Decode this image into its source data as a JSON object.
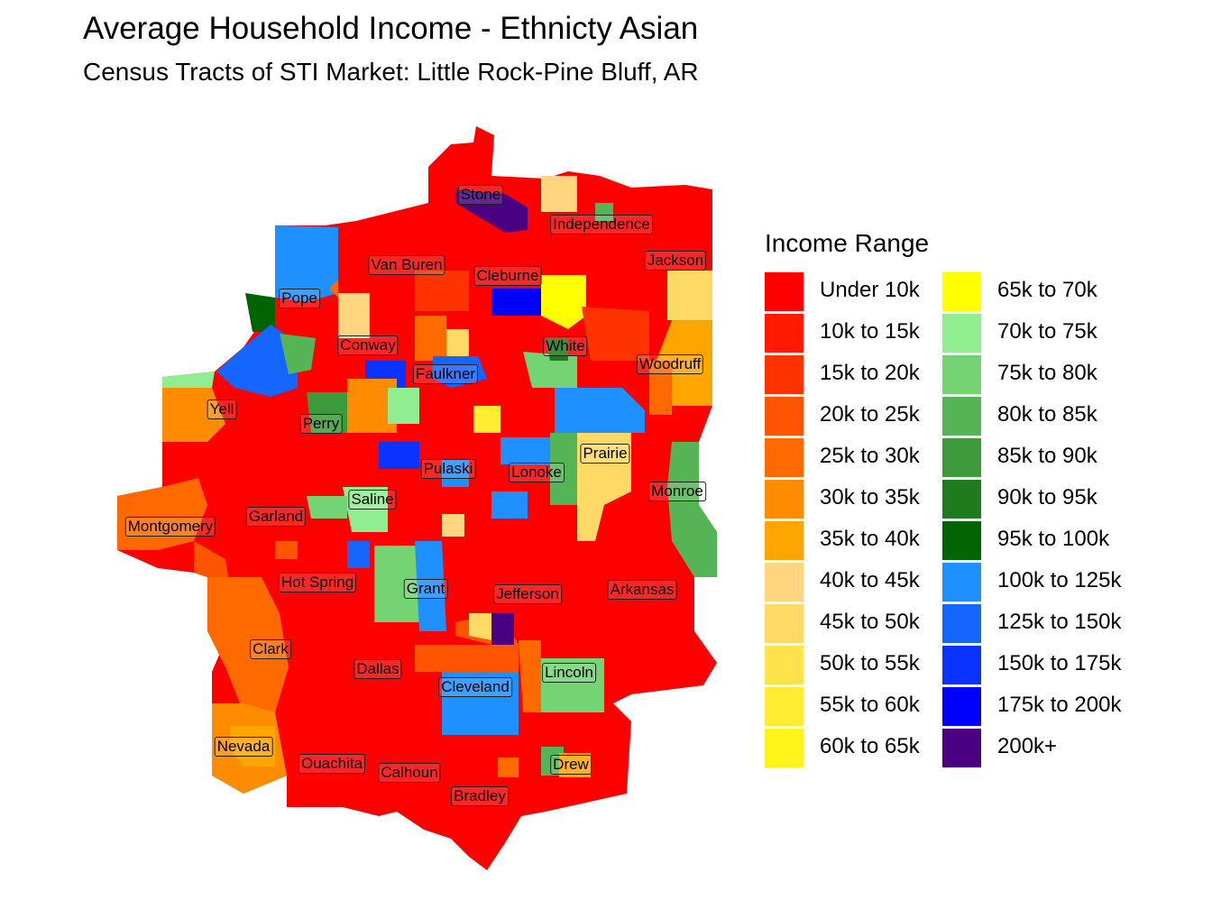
{
  "title": "Average Household Income - Ethnicty Asian",
  "subtitle": "Census Tracts of STI Market: Little Rock-Pine Bluff, AR",
  "legend": {
    "title": "Income Range",
    "items": [
      {
        "label": "Under 10k",
        "color": "#FF0000"
      },
      {
        "label": "10k to 15k",
        "color": "#FF1A00"
      },
      {
        "label": "15k to 20k",
        "color": "#FF3300"
      },
      {
        "label": "20k to 25k",
        "color": "#FF5500"
      },
      {
        "label": "25k to 30k",
        "color": "#FF6A00"
      },
      {
        "label": "30k to 35k",
        "color": "#FF8C00"
      },
      {
        "label": "35k to 40k",
        "color": "#FFA500"
      },
      {
        "label": "40k to 45k",
        "color": "#FFD580"
      },
      {
        "label": "45k to 50k",
        "color": "#FFD966"
      },
      {
        "label": "50k to 55k",
        "color": "#FFE34D"
      },
      {
        "label": "55k to 60k",
        "color": "#FFEC33"
      },
      {
        "label": "60k to 65k",
        "color": "#FFF41A"
      },
      {
        "label": "65k to 70k",
        "color": "#FFFF00"
      },
      {
        "label": "70k to 75k",
        "color": "#90EE90"
      },
      {
        "label": "75k to 80k",
        "color": "#74D474"
      },
      {
        "label": "80k to 85k",
        "color": "#55B455"
      },
      {
        "label": "85k to 90k",
        "color": "#3C9A3C"
      },
      {
        "label": "90k to 95k",
        "color": "#1E7B1E"
      },
      {
        "label": "95k to 100k",
        "color": "#006400"
      },
      {
        "label": "100k to 125k",
        "color": "#1E90FF"
      },
      {
        "label": "125k to 150k",
        "color": "#1466FF"
      },
      {
        "label": "150k to 175k",
        "color": "#0A33FF"
      },
      {
        "label": "175k to 200k",
        "color": "#0000FF"
      },
      {
        "label": "200k+",
        "color": "#4B0082"
      }
    ]
  },
  "counties": [
    "Stone",
    "Independence",
    "Van Buren",
    "Cleburne",
    "Jackson",
    "Pope",
    "Conway",
    "White",
    "Woodruff",
    "Faulkner",
    "Yell",
    "Perry",
    "Prairie",
    "Pulaski",
    "Lonoke",
    "Monroe",
    "Saline",
    "Montgomery",
    "Garland",
    "Hot Spring",
    "Grant",
    "Jefferson",
    "Arkansas",
    "Clark",
    "Dallas",
    "Cleveland",
    "Lincoln",
    "Nevada",
    "Ouachita",
    "Calhoun",
    "Drew",
    "Bradley"
  ]
}
